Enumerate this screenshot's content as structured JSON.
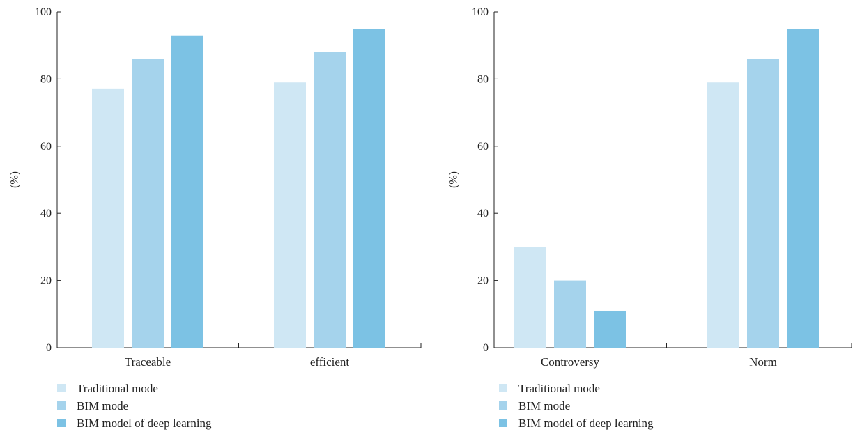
{
  "chart_data": [
    {
      "type": "bar",
      "categories": [
        "Traceable",
        "efficient"
      ],
      "series": [
        {
          "name": "Traditional mode",
          "values": [
            77,
            79
          ]
        },
        {
          "name": "BIM mode",
          "values": [
            86,
            88
          ]
        },
        {
          "name": "BIM model of deep learning",
          "values": [
            93,
            95
          ]
        }
      ],
      "ylabel": "(%)",
      "xlabel": "",
      "ylim": [
        0,
        100
      ],
      "yticks": [
        0,
        20,
        40,
        60,
        80,
        100
      ],
      "grid": false,
      "legend_position": "bottom-left"
    },
    {
      "type": "bar",
      "categories": [
        "Controversy",
        "Norm"
      ],
      "series": [
        {
          "name": "Traditional mode",
          "values": [
            30,
            79
          ]
        },
        {
          "name": "BIM mode",
          "values": [
            20,
            86
          ]
        },
        {
          "name": "BIM model of deep learning",
          "values": [
            11,
            95
          ]
        }
      ],
      "ylabel": "(%)",
      "xlabel": "",
      "ylim": [
        0,
        100
      ],
      "yticks": [
        0,
        20,
        40,
        60,
        80,
        100
      ],
      "grid": false,
      "legend_position": "bottom-left"
    }
  ],
  "colors": {
    "series": [
      "#cfe7f4",
      "#a5d3ec",
      "#7cc2e4"
    ],
    "axis": "#222222"
  }
}
